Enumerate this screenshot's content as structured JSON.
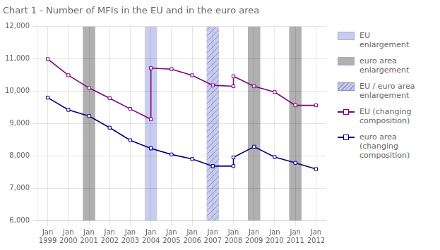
{
  "chart_data": {
    "type": "line",
    "title": "Chart 1 - Number of MFIs in the EU and in the euro area",
    "categories": [
      "Jan\n1999",
      "Jan\n2000",
      "Jan\n2001",
      "Jan\n2002",
      "Jan\n2003",
      "Jan\n2004",
      "Jan\n2005",
      "Jan\n2006",
      "Jan\n2007",
      "Jan\n2008",
      "Jan\n2009",
      "Jan\n2010",
      "Jan\n2011",
      "Jan\n2012"
    ],
    "ylim": [
      6000,
      12000
    ],
    "yticks": [
      {
        "value": 6000,
        "label": "6,000"
      },
      {
        "value": 7000,
        "label": "7,000"
      },
      {
        "value": 8000,
        "label": "8,000"
      },
      {
        "value": 9000,
        "label": "9,000"
      },
      {
        "value": 10000,
        "label": "10,000"
      },
      {
        "value": 11000,
        "label": "11,000"
      },
      {
        "value": 12000,
        "label": "12,000"
      }
    ],
    "grid": true,
    "legend": "right",
    "series": [
      {
        "name": "EU\nenlargement",
        "type": "band",
        "color": "#c8ccee",
        "x": [
          "Jan\n2004"
        ]
      },
      {
        "name": "euro area\nenlargement",
        "type": "band",
        "color": "#b0b0b0",
        "x": [
          "Jan\n2001",
          "Jan\n2009",
          "Jan\n2011"
        ]
      },
      {
        "name": "EU / euro area\nenlargement",
        "type": "hatched_band",
        "color": "#c8ccee",
        "x": [
          "Jan\n2007"
        ]
      },
      {
        "name": "EU (changing\ncomposition)",
        "color": "#800080",
        "marker": "square",
        "x": [
          "Jan\n1999",
          "Jan\n2000",
          "Jan\n2001",
          "Jan\n2002",
          "Jan\n2003",
          "Jan\n2004",
          "Jan\n2004",
          "Jan\n2005",
          "Jan\n2006",
          "Jan\n2007",
          "Jan\n2008",
          "Jan\n2008",
          "Jan\n2009",
          "Jan\n2010",
          "Jan\n2011",
          "Jan\n2012"
        ],
        "values": [
          10990,
          10490,
          10100,
          9780,
          9450,
          9130,
          10710,
          10680,
          10490,
          10180,
          10150,
          10460,
          10150,
          9970,
          9560,
          9560
        ]
      },
      {
        "name": "euro area\n(changing\ncomposition)",
        "color": "#000080",
        "marker": "square",
        "x": [
          "Jan\n1999",
          "Jan\n2000",
          "Jan\n2001",
          "Jan\n2002",
          "Jan\n2003",
          "Jan\n2004",
          "Jan\n2004",
          "Jan\n2005",
          "Jan\n2006",
          "Jan\n2007",
          "Jan\n2007",
          "Jan\n2008",
          "Jan\n2008",
          "Jan\n2009",
          "Jan\n2010",
          "Jan\n2011",
          "Jan\n2012"
        ],
        "values": [
          9800,
          9420,
          9230,
          8870,
          8480,
          8230,
          8230,
          8040,
          7900,
          7680,
          7680,
          7680,
          7950,
          8280,
          7960,
          7780,
          7590
        ]
      }
    ]
  }
}
